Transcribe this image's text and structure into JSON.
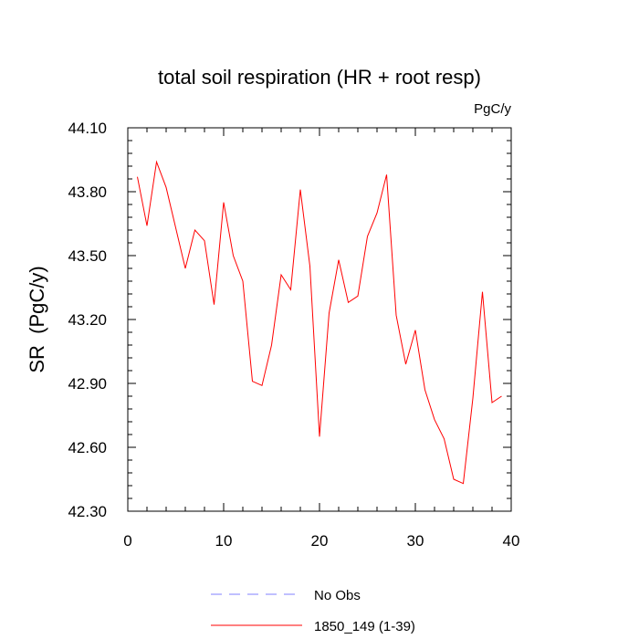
{
  "chart_data": {
    "type": "line",
    "title": "total soil respiration (HR + root resp)",
    "units_label": "PgC/y",
    "ylabel": "SR  (PgC/y)",
    "xlabel": "",
    "xlim": [
      0,
      40
    ],
    "ylim": [
      42.3,
      44.1
    ],
    "x_ticks": [
      0,
      10,
      20,
      30,
      40
    ],
    "x_tick_labels": [
      "0",
      "10",
      "20",
      "30",
      "40"
    ],
    "y_ticks": [
      42.3,
      42.6,
      42.9,
      43.2,
      43.5,
      43.8,
      44.1
    ],
    "y_tick_labels": [
      "42.30",
      "42.60",
      "42.90",
      "43.20",
      "43.50",
      "43.80",
      "44.10"
    ],
    "grid": false,
    "legend_position": "bottom",
    "series": [
      {
        "name": "No Obs",
        "color": "#8080ff",
        "dash": "dashed",
        "x": [],
        "values": []
      },
      {
        "name": "1850_149 (1-39)",
        "color": "#ff0000",
        "dash": "solid",
        "x": [
          1,
          2,
          3,
          4,
          5,
          6,
          7,
          8,
          9,
          10,
          11,
          12,
          13,
          14,
          15,
          16,
          17,
          18,
          19,
          20,
          21,
          22,
          23,
          24,
          25,
          26,
          27,
          28,
          29,
          30,
          31,
          32,
          33,
          34,
          35,
          36,
          37,
          38,
          39
        ],
        "values": [
          43.87,
          43.64,
          43.94,
          43.82,
          43.63,
          43.44,
          43.62,
          43.57,
          43.27,
          43.75,
          43.5,
          43.38,
          42.91,
          42.89,
          43.08,
          43.41,
          43.34,
          43.81,
          43.45,
          42.65,
          43.23,
          43.48,
          43.28,
          43.31,
          43.59,
          43.7,
          43.88,
          43.22,
          42.99,
          43.15,
          42.87,
          42.73,
          42.64,
          42.45,
          42.43,
          42.83,
          43.33,
          42.81,
          42.84
        ]
      }
    ]
  }
}
